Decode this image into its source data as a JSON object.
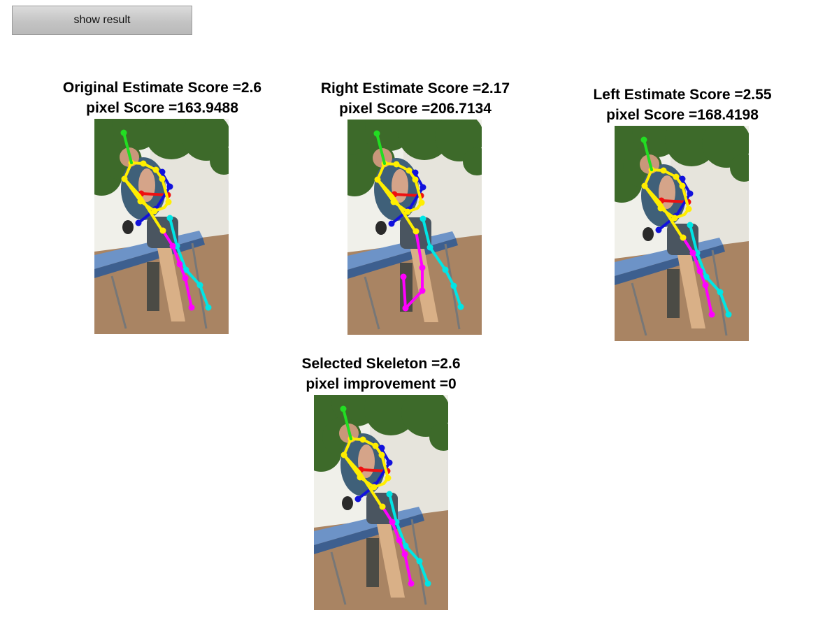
{
  "toolbar": {
    "show_result_label": "show result"
  },
  "panels": [
    {
      "id": "original",
      "line1": "Original Estimate Score =2.6",
      "line2": "pixel Score =163.9488"
    },
    {
      "id": "right",
      "line1": "Right Estimate Score =2.17",
      "line2": "pixel Score =206.7134"
    },
    {
      "id": "left",
      "line1": "Left Estimate Score =2.55",
      "line2": "pixel Score =168.4198"
    },
    {
      "id": "selected",
      "line1": "Selected Skeleton =2.6",
      "line2": "pixel improvement =0"
    }
  ],
  "colors": {
    "head": "#22dd22",
    "torso": "#ffee00",
    "left_arm": "#1111dd",
    "right_arm": "#ee1111",
    "left_leg": "#ff00ff",
    "right_leg": "#00e5e5",
    "background_sky": "#f0f0ea",
    "foliage": "#3d6a2a",
    "ground": "#a98463",
    "table": "#6d93c7"
  }
}
